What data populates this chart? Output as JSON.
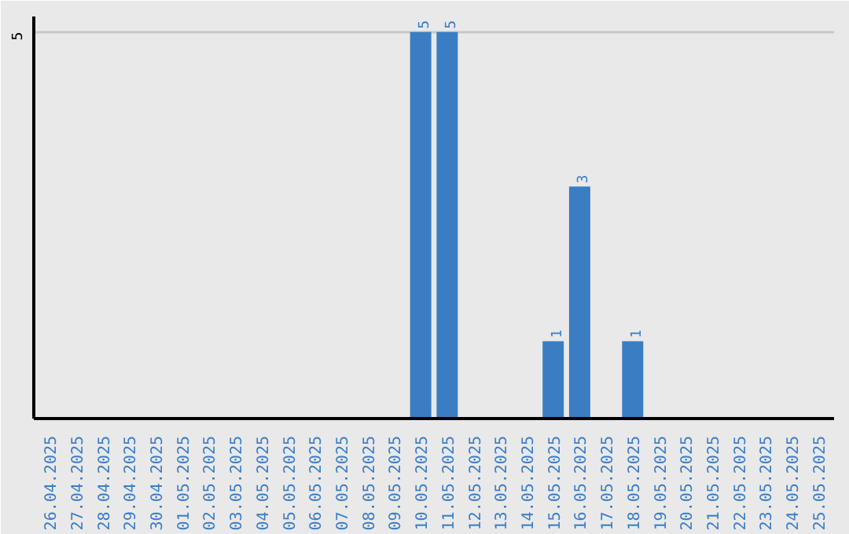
{
  "chart_data": {
    "type": "bar",
    "categories": [
      "26.04.2025",
      "27.04.2025",
      "28.04.2025",
      "29.04.2025",
      "30.04.2025",
      "01.05.2025",
      "02.05.2025",
      "03.05.2025",
      "04.05.2025",
      "05.05.2025",
      "06.05.2025",
      "07.05.2025",
      "08.05.2025",
      "09.05.2025",
      "10.05.2025",
      "11.05.2025",
      "12.05.2025",
      "13.05.2025",
      "14.05.2025",
      "15.05.2025",
      "16.05.2025",
      "17.05.2025",
      "18.05.2025",
      "19.05.2025",
      "20.05.2025",
      "21.05.2025",
      "22.05.2025",
      "23.05.2025",
      "24.05.2025",
      "25.05.2025"
    ],
    "values": [
      null,
      null,
      null,
      null,
      null,
      null,
      null,
      null,
      null,
      null,
      null,
      null,
      null,
      null,
      5,
      5,
      null,
      null,
      null,
      1,
      3,
      null,
      1,
      null,
      null,
      null,
      null,
      null,
      null,
      null
    ],
    "data_labels": true,
    "color": "#3a7dc2",
    "ylim": [
      0,
      5.2
    ],
    "yticks": [
      5
    ],
    "grid": "y"
  }
}
